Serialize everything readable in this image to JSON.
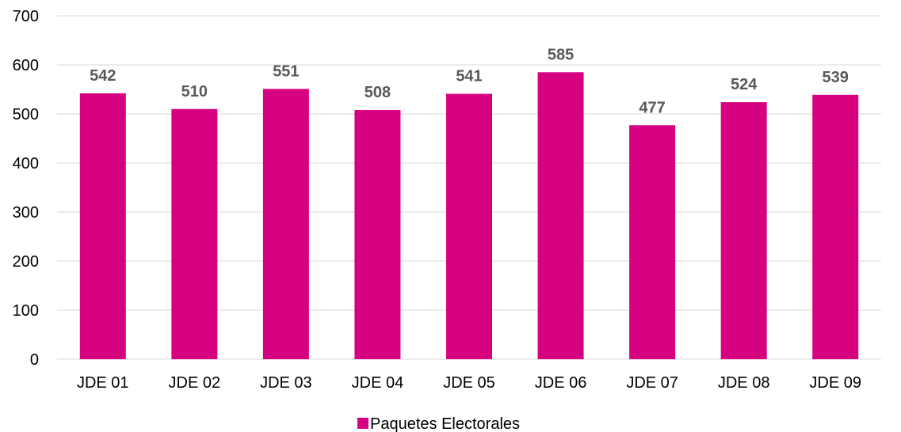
{
  "chart_data": {
    "type": "bar",
    "title": "",
    "xlabel": "",
    "ylabel": "",
    "categories": [
      "JDE 01",
      "JDE 02",
      "JDE 03",
      "JDE 04",
      "JDE 05",
      "JDE 06",
      "JDE 07",
      "JDE 08",
      "JDE 09"
    ],
    "series": [
      {
        "name": "Paquetes Electorales",
        "values": [
          542,
          510,
          551,
          508,
          541,
          585,
          477,
          524,
          539
        ],
        "color": "#D6017F"
      }
    ],
    "ylim": [
      0,
      700
    ],
    "yticks": [
      0,
      100,
      200,
      300,
      400,
      500,
      600,
      700
    ],
    "grid": true,
    "gridline_color": "#D9D9D9",
    "data_labels": true,
    "legend_position": "bottom"
  }
}
